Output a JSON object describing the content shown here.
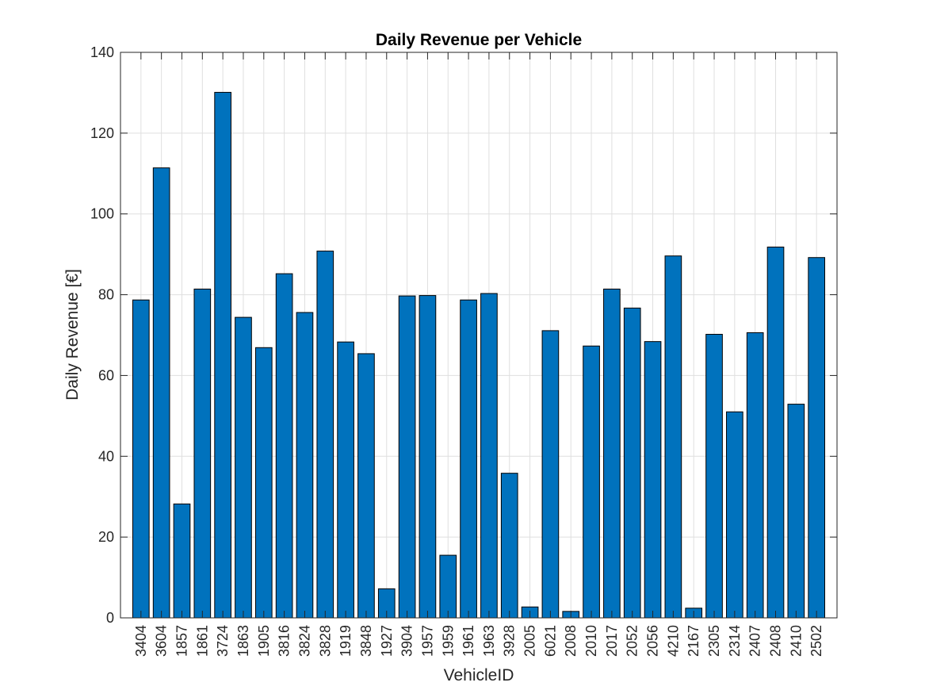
{
  "chart_data": {
    "type": "bar",
    "title": "Daily Revenue per Vehicle",
    "xlabel": "VehicleID",
    "ylabel": "Daily Revenue [€]",
    "categories": [
      "3404",
      "3604",
      "1857",
      "1861",
      "3724",
      "1863",
      "1905",
      "3816",
      "3824",
      "3828",
      "1919",
      "3848",
      "1927",
      "3904",
      "1957",
      "1959",
      "1961",
      "1963",
      "3928",
      "2005",
      "6021",
      "2008",
      "2010",
      "2017",
      "2052",
      "2056",
      "4210",
      "2167",
      "2305",
      "2314",
      "2407",
      "2408",
      "2410",
      "2502"
    ],
    "values": [
      78.7,
      111.4,
      28.2,
      81.4,
      130.1,
      74.4,
      66.9,
      85.2,
      75.6,
      90.8,
      68.3,
      65.4,
      7.2,
      79.7,
      79.8,
      15.5,
      78.7,
      80.3,
      35.8,
      2.7,
      71.1,
      1.6,
      67.3,
      81.4,
      76.7,
      68.4,
      89.6,
      2.4,
      70.2,
      51.0,
      70.6,
      91.8,
      52.9,
      89.2
    ],
    "ylim": [
      0,
      140
    ],
    "yticks": [
      0,
      20,
      40,
      60,
      80,
      100,
      120,
      140
    ],
    "grid": true,
    "bar_color": "#0072BD",
    "bar_edge_color": "#000000"
  }
}
